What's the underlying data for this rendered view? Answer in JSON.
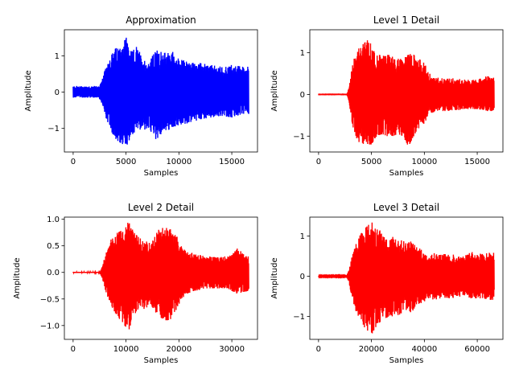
{
  "figure": {
    "background": "#ffffff"
  },
  "chart_data": [
    {
      "type": "line",
      "title": "Approximation",
      "xlabel": "Samples",
      "ylabel": "Amplitude",
      "color": "#0000ff",
      "xlim": [
        -830,
        17430
      ],
      "ylim": [
        -1.65,
        1.72
      ],
      "xticks": [
        0,
        5000,
        10000,
        15000
      ],
      "xtick_labels": [
        "0",
        "5000",
        "10000",
        "15000"
      ],
      "yticks": [
        -1,
        0,
        1
      ],
      "ytick_labels": [
        "−1",
        "0",
        "1"
      ],
      "n_samples": 16600,
      "envelope": {
        "x": [
          0,
          2400,
          2700,
          3000,
          3300,
          3600,
          4000,
          4500,
          5000,
          5500,
          6000,
          6500,
          7000,
          7500,
          8000,
          8500,
          9000,
          9500,
          10000,
          11000,
          12000,
          13000,
          14000,
          15000,
          16000,
          16500
        ],
        "max": [
          0.17,
          0.17,
          0.3,
          0.6,
          0.9,
          1.05,
          1.2,
          1.3,
          1.58,
          1.1,
          1.25,
          1.0,
          0.8,
          1.0,
          1.2,
          1.05,
          1.15,
          1.1,
          0.9,
          0.85,
          0.8,
          0.75,
          0.7,
          0.75,
          0.7,
          0.7
        ],
        "min": [
          -0.15,
          -0.15,
          -0.3,
          -0.6,
          -0.9,
          -1.1,
          -1.3,
          -1.4,
          -1.52,
          -1.2,
          -1.1,
          -1.0,
          -1.1,
          -1.2,
          -1.38,
          -1.0,
          -1.1,
          -1.0,
          -0.9,
          -0.85,
          -0.75,
          -0.7,
          -0.65,
          -0.7,
          -0.6,
          -0.6
        ]
      }
    },
    {
      "type": "line",
      "title": "Level 1 Detail",
      "xlabel": "Samples",
      "ylabel": "Amplitude",
      "color": "#ff0000",
      "xlim": [
        -830,
        17430
      ],
      "ylim": [
        -1.38,
        1.55
      ],
      "xticks": [
        0,
        5000,
        10000,
        15000
      ],
      "xtick_labels": [
        "0",
        "5000",
        "10000",
        "15000"
      ],
      "yticks": [
        -1,
        0,
        1
      ],
      "ytick_labels": [
        "−1",
        "0",
        "1"
      ],
      "n_samples": 16600,
      "envelope": {
        "x": [
          0,
          2700,
          2900,
          3100,
          3400,
          3800,
          4200,
          4600,
          5000,
          5500,
          6000,
          6500,
          7000,
          7500,
          8000,
          8500,
          9000,
          9500,
          10000,
          10500,
          11000,
          12000,
          13000,
          14000,
          15000,
          16000,
          16500
        ],
        "max": [
          0.02,
          0.02,
          0.2,
          0.6,
          0.95,
          1.1,
          1.2,
          1.3,
          1.2,
          1.0,
          0.9,
          1.0,
          0.9,
          0.85,
          0.9,
          0.95,
          1.0,
          0.85,
          0.75,
          0.5,
          0.4,
          0.4,
          0.38,
          0.35,
          0.35,
          0.45,
          0.4
        ],
        "min": [
          -0.02,
          -0.02,
          -0.2,
          -0.6,
          -0.95,
          -1.15,
          -1.28,
          -1.2,
          -1.2,
          -1.0,
          -0.95,
          -1.0,
          -1.0,
          -0.95,
          -1.0,
          -1.25,
          -1.0,
          -0.8,
          -0.7,
          -0.5,
          -0.4,
          -0.4,
          -0.38,
          -0.35,
          -0.35,
          -0.4,
          -0.4
        ]
      }
    },
    {
      "type": "line",
      "title": "Level 2 Detail",
      "xlabel": "Samples",
      "ylabel": "Amplitude",
      "color": "#ff0000",
      "xlim": [
        -1650,
        34850
      ],
      "ylim": [
        -1.26,
        1.04
      ],
      "xticks": [
        0,
        10000,
        20000,
        30000
      ],
      "xtick_labels": [
        "0",
        "10000",
        "20000",
        "30000"
      ],
      "yticks": [
        -1.0,
        -0.5,
        0.0,
        0.5,
        1.0
      ],
      "ytick_labels": [
        "−1.0",
        "−0.5",
        "0.0",
        "0.5",
        "1.0"
      ],
      "n_samples": 33200,
      "envelope": {
        "x": [
          0,
          5000,
          5500,
          6000,
          6800,
          7600,
          8500,
          9500,
          10500,
          11500,
          12500,
          13500,
          14500,
          15500,
          16500,
          17500,
          18500,
          19500,
          20500,
          21500,
          23000,
          25000,
          27000,
          29000,
          31000,
          33000
        ],
        "max": [
          0.01,
          0.01,
          0.1,
          0.3,
          0.55,
          0.7,
          0.8,
          0.85,
          0.95,
          0.75,
          0.65,
          0.6,
          0.55,
          0.7,
          0.85,
          0.9,
          0.8,
          0.7,
          0.5,
          0.4,
          0.35,
          0.3,
          0.3,
          0.3,
          0.45,
          0.3
        ],
        "min": [
          -0.01,
          -0.01,
          -0.1,
          -0.3,
          -0.55,
          -0.7,
          -0.85,
          -0.95,
          -1.15,
          -0.8,
          -0.7,
          -0.7,
          -0.6,
          -0.75,
          -0.85,
          -0.9,
          -0.9,
          -0.7,
          -0.5,
          -0.4,
          -0.35,
          -0.3,
          -0.3,
          -0.3,
          -0.4,
          -0.35
        ]
      }
    },
    {
      "type": "line",
      "title": "Level 3 Detail",
      "xlabel": "Samples",
      "ylabel": "Amplitude",
      "color": "#ff0000",
      "xlim": [
        -3300,
        69700
      ],
      "ylim": [
        -1.57,
        1.47
      ],
      "xticks": [
        0,
        20000,
        40000,
        60000
      ],
      "xtick_labels": [
        "0",
        "20000",
        "40000",
        "60000"
      ],
      "yticks": [
        -1,
        0,
        1
      ],
      "ytick_labels": [
        "−1",
        "0",
        "1"
      ],
      "n_samples": 66400,
      "envelope": {
        "x": [
          0,
          10500,
          11500,
          12500,
          14000,
          15500,
          17000,
          18500,
          20000,
          21500,
          23000,
          25000,
          27000,
          29000,
          31000,
          33000,
          35000,
          37000,
          39000,
          41000,
          43000,
          46000,
          50000,
          54000,
          58000,
          62000,
          66000
        ],
        "max": [
          0.01,
          0.01,
          0.15,
          0.45,
          0.8,
          1.0,
          1.15,
          1.25,
          1.35,
          1.25,
          1.15,
          1.05,
          0.95,
          1.0,
          0.9,
          0.85,
          0.9,
          0.75,
          0.65,
          0.55,
          0.6,
          0.55,
          0.55,
          0.5,
          0.6,
          0.55,
          0.6
        ],
        "min": [
          -0.01,
          -0.01,
          -0.15,
          -0.5,
          -0.85,
          -1.05,
          -1.25,
          -1.35,
          -1.45,
          -1.3,
          -1.15,
          -1.05,
          -1.0,
          -1.0,
          -0.95,
          -0.85,
          -0.9,
          -0.8,
          -0.65,
          -0.6,
          -0.6,
          -0.55,
          -0.55,
          -0.5,
          -0.55,
          -0.55,
          -0.6
        ]
      }
    }
  ]
}
